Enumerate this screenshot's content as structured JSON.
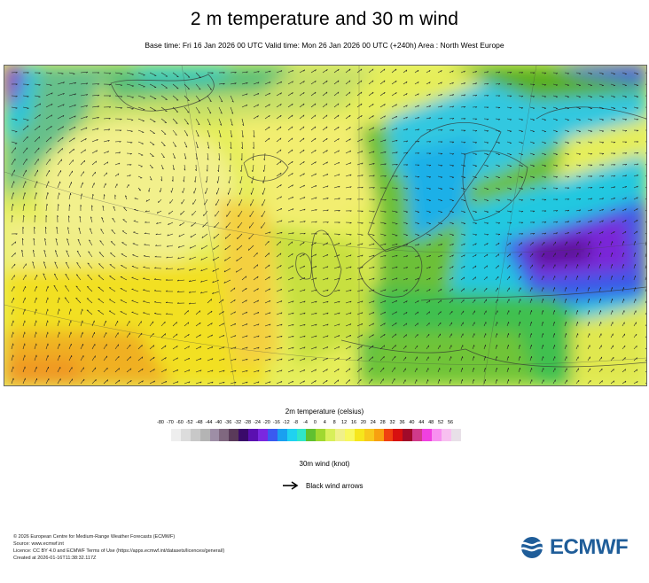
{
  "title": "2 m temperature and 30 m wind",
  "subtitle": "Base time: Fri 16 Jan 2026 00 UTC Valid time: Mon 26 Jan 2026 00 UTC (+240h) Area : North West Europe",
  "legend": {
    "title": "2m temperature (celsius)",
    "ticks": [
      "-80",
      "-70",
      "-60",
      "-52",
      "-48",
      "-44",
      "-40",
      "-36",
      "-32",
      "-28",
      "-24",
      "-20",
      "-16",
      "-12",
      "-8",
      "-4",
      "0",
      "4",
      "8",
      "12",
      "16",
      "20",
      "24",
      "28",
      "32",
      "36",
      "40",
      "44",
      "48",
      "52",
      "56"
    ],
    "colors": [
      "#eeeeee",
      "#dcdcdc",
      "#c8c8c8",
      "#b4b4b4",
      "#9e8ea6",
      "#806880",
      "#5a3a5a",
      "#3a0a6a",
      "#5a10b0",
      "#7a28e0",
      "#3a5af0",
      "#1aa0f0",
      "#20d2f0",
      "#30e6c8",
      "#60c030",
      "#a0d830",
      "#d8ef5a",
      "#f0f08a",
      "#f8f860",
      "#f6e61c",
      "#f8c81c",
      "#f8a010",
      "#f04010",
      "#d81010",
      "#a00a2a",
      "#d03a8a",
      "#f040e0",
      "#f890f0",
      "#f8c0f0",
      "#e8e0e8"
    ]
  },
  "wind": {
    "label": "30m wind (knot)",
    "arrow_text": "Black wind arrows"
  },
  "footer": [
    "© 2026 European Centre for Medium-Range Weather Forecasts (ECMWF)",
    "Source: www.ecmwf.int",
    "Licence: CC BY 4.0 and ECMWF Terms of Use (https://apps.ecmwf.int/datasets/licences/general/)",
    "Created at 2026-01-16T11:38:32.117Z"
  ],
  "logo": {
    "text": "ECMWF",
    "color": "#1f5d99"
  }
}
